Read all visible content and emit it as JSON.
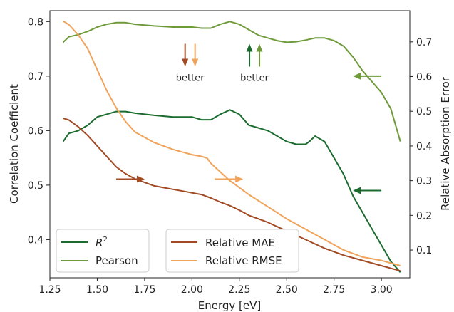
{
  "chart_data": {
    "type": "line",
    "x_axis": {
      "label": "Energy [eV]",
      "range": [
        1.25,
        3.15
      ],
      "ticks": [
        1.25,
        1.5,
        1.75,
        2.0,
        2.25,
        2.5,
        2.75,
        3.0
      ],
      "tick_labels": [
        "1.25",
        "1.50",
        "1.75",
        "2.00",
        "2.25",
        "2.50",
        "2.75",
        "3.00"
      ]
    },
    "y_left": {
      "label": "Correlation Coefficient",
      "range": [
        0.33,
        0.82
      ],
      "ticks": [
        0.4,
        0.5,
        0.6,
        0.7,
        0.8
      ],
      "tick_labels": [
        "0.4",
        "0.5",
        "0.6",
        "0.7",
        "0.8"
      ]
    },
    "y_right": {
      "label": "Relative Absorption Error",
      "range": [
        0.02,
        0.79
      ],
      "ticks": [
        0.1,
        0.2,
        0.3,
        0.4,
        0.5,
        0.6,
        0.7
      ],
      "tick_labels": [
        "0.1",
        "0.2",
        "0.3",
        "0.4",
        "0.5",
        "0.6",
        "0.7"
      ]
    },
    "grid": false,
    "legend_left": {
      "placement": "lower-left",
      "entries": [
        "R2",
        "Pearson"
      ]
    },
    "legend_right": {
      "placement": "lower-center",
      "entries": [
        "Relative MAE",
        "Relative RMSE"
      ]
    },
    "series": [
      {
        "name": "R2",
        "axis": "left",
        "color": "#1b6b2f",
        "x": [
          1.32,
          1.35,
          1.4,
          1.45,
          1.5,
          1.55,
          1.6,
          1.65,
          1.7,
          1.8,
          1.9,
          2.0,
          2.05,
          2.1,
          2.15,
          2.2,
          2.25,
          2.3,
          2.35,
          2.4,
          2.45,
          2.5,
          2.55,
          2.6,
          2.62,
          2.65,
          2.7,
          2.75,
          2.8,
          2.85,
          2.9,
          2.95,
          3.0,
          3.05,
          3.1
        ],
        "values": [
          0.58,
          0.595,
          0.6,
          0.61,
          0.625,
          0.63,
          0.635,
          0.635,
          0.632,
          0.628,
          0.625,
          0.625,
          0.62,
          0.62,
          0.63,
          0.638,
          0.63,
          0.61,
          0.605,
          0.6,
          0.59,
          0.58,
          0.575,
          0.575,
          0.58,
          0.59,
          0.58,
          0.55,
          0.52,
          0.48,
          0.45,
          0.42,
          0.39,
          0.36,
          0.34
        ]
      },
      {
        "name": "Pearson",
        "axis": "left",
        "color": "#6f9a3a",
        "x": [
          1.32,
          1.35,
          1.4,
          1.45,
          1.5,
          1.55,
          1.6,
          1.65,
          1.7,
          1.8,
          1.9,
          2.0,
          2.05,
          2.1,
          2.15,
          2.2,
          2.25,
          2.3,
          2.35,
          2.4,
          2.45,
          2.5,
          2.55,
          2.6,
          2.65,
          2.7,
          2.75,
          2.8,
          2.85,
          2.9,
          2.95,
          3.0,
          3.05,
          3.1
        ],
        "values": [
          0.762,
          0.772,
          0.776,
          0.782,
          0.79,
          0.795,
          0.798,
          0.798,
          0.795,
          0.792,
          0.79,
          0.79,
          0.788,
          0.788,
          0.795,
          0.8,
          0.795,
          0.785,
          0.775,
          0.77,
          0.765,
          0.762,
          0.763,
          0.766,
          0.77,
          0.77,
          0.765,
          0.755,
          0.735,
          0.71,
          0.69,
          0.67,
          0.64,
          0.58
        ]
      },
      {
        "name": "Relative MAE",
        "axis": "right",
        "color": "#a14a23",
        "x": [
          1.32,
          1.35,
          1.4,
          1.45,
          1.5,
          1.55,
          1.6,
          1.65,
          1.7,
          1.75,
          1.8,
          1.85,
          1.9,
          1.95,
          2.0,
          2.05,
          2.1,
          2.15,
          2.2,
          2.25,
          2.3,
          2.4,
          2.5,
          2.6,
          2.7,
          2.8,
          2.9,
          3.0,
          3.1
        ],
        "values": [
          0.48,
          0.475,
          0.455,
          0.43,
          0.4,
          0.37,
          0.34,
          0.32,
          0.305,
          0.295,
          0.285,
          0.28,
          0.275,
          0.27,
          0.265,
          0.26,
          0.25,
          0.238,
          0.228,
          0.215,
          0.2,
          0.18,
          0.155,
          0.13,
          0.105,
          0.085,
          0.07,
          0.055,
          0.04
        ]
      },
      {
        "name": "Relative RMSE",
        "axis": "right",
        "color": "#f0a35a",
        "x": [
          1.32,
          1.35,
          1.4,
          1.45,
          1.5,
          1.55,
          1.6,
          1.65,
          1.7,
          1.8,
          1.9,
          2.0,
          2.05,
          2.08,
          2.1,
          2.15,
          2.2,
          2.3,
          2.4,
          2.5,
          2.6,
          2.7,
          2.8,
          2.9,
          3.0,
          3.1
        ],
        "values": [
          0.76,
          0.75,
          0.72,
          0.68,
          0.62,
          0.56,
          0.51,
          0.47,
          0.44,
          0.41,
          0.39,
          0.375,
          0.37,
          0.365,
          0.35,
          0.325,
          0.3,
          0.26,
          0.225,
          0.19,
          0.16,
          0.13,
          0.1,
          0.08,
          0.07,
          0.055
        ]
      }
    ],
    "annotations": [
      {
        "kind": "better-arrows",
        "text": "better",
        "direction": "down",
        "colors": [
          "#a14a23",
          "#f0a35a"
        ],
        "x": 1.99,
        "y_left": 0.72
      },
      {
        "kind": "better-arrows",
        "text": "better",
        "direction": "up",
        "colors": [
          "#1b6b2f",
          "#6f9a3a"
        ],
        "x": 2.33,
        "y_left": 0.72
      },
      {
        "kind": "axis-arrow",
        "direction": "left",
        "color": "#6f9a3a",
        "x_from": 3.0,
        "x_to": 2.85,
        "y_left": 0.7
      },
      {
        "kind": "axis-arrow",
        "direction": "left",
        "color": "#1b6b2f",
        "x_from": 3.0,
        "x_to": 2.85,
        "y_left": 0.49
      },
      {
        "kind": "axis-arrow",
        "direction": "right",
        "color": "#a14a23",
        "x_from": 1.6,
        "x_to": 1.75,
        "y_left": 0.511
      },
      {
        "kind": "axis-arrow",
        "direction": "right",
        "color": "#f0a35a",
        "x_from": 2.12,
        "x_to": 2.27,
        "y_left": 0.511
      }
    ],
    "legend_labels": {
      "r2": "R",
      "r2_sup": "2",
      "pearson": "Pearson",
      "mae": "Relative MAE",
      "rmse": "Relative RMSE"
    }
  }
}
